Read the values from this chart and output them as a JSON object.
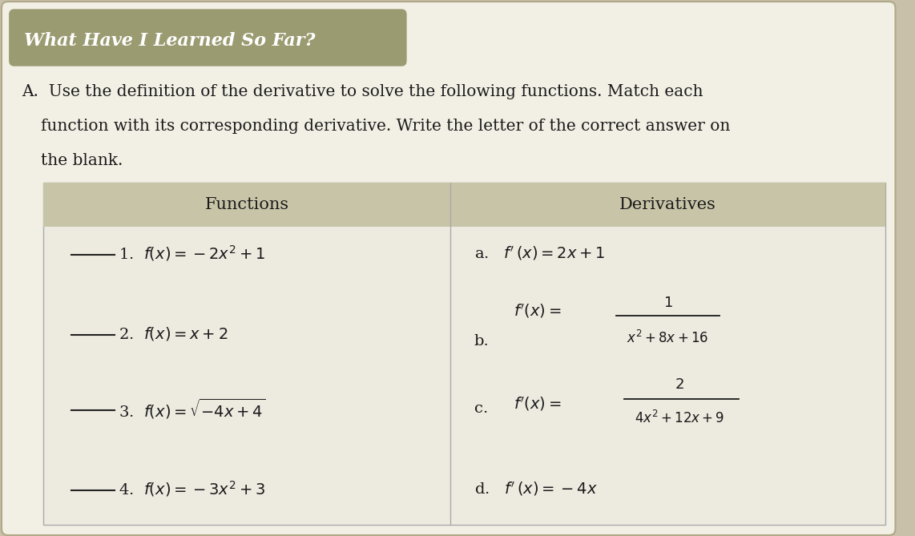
{
  "title": "What Have I Learned So Far?",
  "title_bg": "#9B9B72",
  "title_color": "#FFFFFF",
  "page_bg": "#C8C0A8",
  "content_bg": "#E8E4D8",
  "table_body_bg": "#DEDAD0",
  "header_bg": "#C8C4A8",
  "font_color": "#1A1A1A",
  "blank_line_color": "#222222",
  "col_header_left": "Functions",
  "col_header_right": "Derivatives",
  "instr_line1": "A.  Use the definition of the derivative to solve the following functions. Match each",
  "instr_line2": "    function with its corresponding derivative. Write the letter of the correct answer on",
  "instr_line3": "    the blank."
}
